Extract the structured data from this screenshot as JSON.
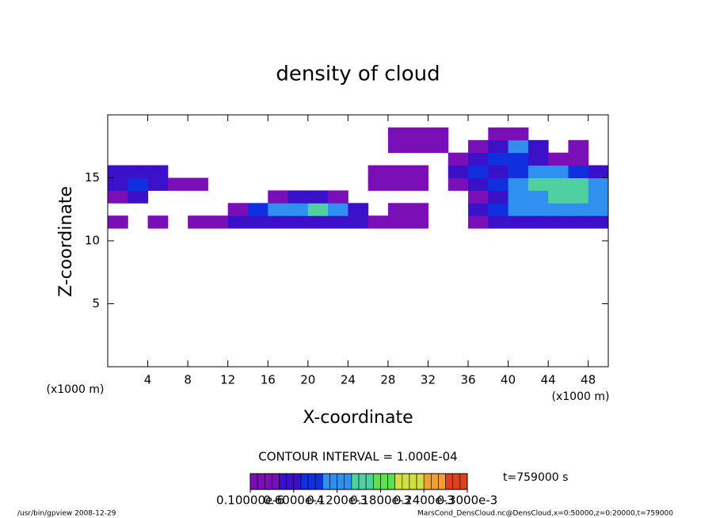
{
  "chart_data": {
    "type": "heatmap",
    "title": "density of cloud",
    "x_label": "X-coordinate",
    "y_label": "Z-coordinate",
    "x_unit": "(x1000 m)",
    "y_unit": "(x1000 m)",
    "contour_interval": "CONTOUR INTERVAL = 1.000E-04",
    "time_label": "t=759000 s",
    "footer_left": "/usr/bin/gpview   2008-12-29",
    "footer_right": "MarsCond_DensCloud.nc@DensCloud,x=0:50000,z=0:20000,t=759000",
    "xlim": [
      0,
      50
    ],
    "ylim": [
      0,
      20
    ],
    "xticks": [
      4,
      8,
      12,
      16,
      20,
      24,
      28,
      32,
      36,
      40,
      44,
      48
    ],
    "yticks": [
      5,
      10,
      15
    ],
    "x": [
      0,
      2,
      4,
      6,
      8,
      10,
      12,
      14,
      16,
      18,
      20,
      22,
      24,
      26,
      28,
      30,
      32,
      34,
      36,
      38,
      40,
      42,
      44,
      46,
      48,
      50
    ],
    "z": [
      11,
      12,
      13,
      14,
      15,
      16,
      17,
      18,
      19
    ],
    "values": [
      [
        3e-05,
        null,
        3e-05,
        null,
        3e-05,
        3e-05,
        4e-05,
        5e-05,
        6e-05,
        6e-05,
        6e-05,
        6e-05,
        4e-05,
        3e-05,
        3e-05,
        3e-05,
        null,
        null,
        3e-05,
        5e-05,
        6e-05,
        6e-05,
        6e-05,
        6e-05,
        5e-05
      ],
      [
        null,
        null,
        null,
        null,
        null,
        null,
        3e-05,
        8e-05,
        0.0001,
        0.00012,
        0.00014,
        0.00012,
        5e-05,
        null,
        3e-05,
        3e-05,
        null,
        null,
        5e-05,
        8e-05,
        0.0001,
        0.0001,
        0.00012,
        0.00012,
        0.0001
      ],
      [
        3e-05,
        5e-05,
        null,
        null,
        null,
        null,
        null,
        null,
        3e-05,
        5e-05,
        5e-05,
        3e-05,
        null,
        null,
        null,
        null,
        null,
        null,
        3e-05,
        6e-05,
        0.0001,
        0.00012,
        0.00014,
        0.00014,
        0.00012
      ],
      [
        6e-05,
        8e-05,
        6e-05,
        3e-05,
        3e-05,
        null,
        null,
        null,
        null,
        null,
        null,
        null,
        null,
        3e-05,
        3e-05,
        3e-05,
        null,
        3e-05,
        6e-05,
        8e-05,
        0.0001,
        0.00014,
        0.00016,
        0.00016,
        0.00012
      ],
      [
        5e-05,
        6e-05,
        5e-05,
        null,
        null,
        null,
        null,
        null,
        null,
        null,
        null,
        null,
        null,
        3e-05,
        3e-05,
        3e-05,
        null,
        5e-05,
        8e-05,
        6e-05,
        8e-05,
        0.0001,
        0.0001,
        8e-05,
        5e-05
      ],
      [
        null,
        null,
        null,
        null,
        null,
        null,
        null,
        null,
        null,
        null,
        null,
        null,
        null,
        null,
        null,
        null,
        null,
        3e-05,
        5e-05,
        8e-05,
        8e-05,
        5e-05,
        3e-05,
        3e-05,
        null
      ],
      [
        null,
        null,
        null,
        null,
        null,
        null,
        null,
        null,
        null,
        null,
        null,
        null,
        null,
        null,
        3e-05,
        3e-05,
        3e-05,
        null,
        3e-05,
        6e-05,
        0.0001,
        5e-05,
        null,
        3e-05,
        null
      ],
      [
        null,
        null,
        null,
        null,
        null,
        null,
        null,
        null,
        null,
        null,
        null,
        null,
        null,
        null,
        3e-05,
        3e-05,
        3e-05,
        null,
        null,
        3e-05,
        3e-05,
        null,
        null,
        null,
        null
      ]
    ],
    "clim": [
      0,
      0.0003
    ],
    "colormap": [
      "#7a0fb8",
      "#3a10c8",
      "#1030e0",
      "#3090f0",
      "#50d0a0",
      "#60e050",
      "#d0e040",
      "#f0a030",
      "#e04020"
    ],
    "cticks": [
      {
        "value": 1e-07,
        "label": "0.10000e-6"
      },
      {
        "value": 6e-05,
        "label": "0.6000e-4"
      },
      {
        "value": 0.00012,
        "label": "0.1200e-3"
      },
      {
        "value": 0.00018,
        "label": "0.1800e-3"
      },
      {
        "value": 0.00024,
        "label": "0.2400e-3"
      },
      {
        "value": 0.0003,
        "label": "0.3000e-3"
      }
    ]
  }
}
